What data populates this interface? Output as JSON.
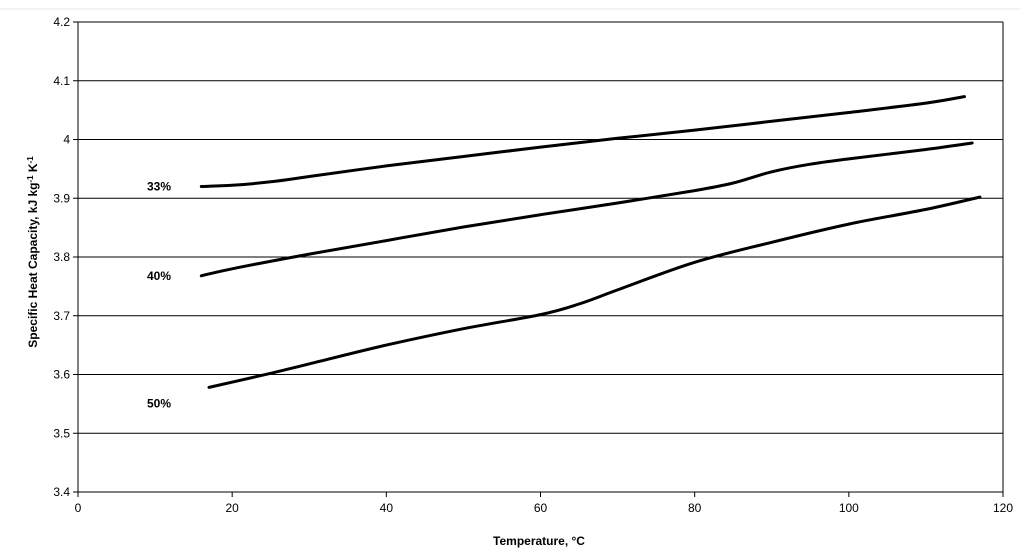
{
  "chart_data": {
    "type": "line",
    "title": "",
    "xlabel": "Temperature, °C",
    "ylabel_parts": [
      "Specific Heat Capacity, kJ kg",
      "-1",
      " K",
      "-1"
    ],
    "xlim": [
      0,
      120
    ],
    "ylim": [
      3.4,
      4.2
    ],
    "xticks": [
      "0",
      "20",
      "40",
      "60",
      "80",
      "100",
      "120"
    ],
    "yticks": [
      "3.4",
      "3.5",
      "3.6",
      "3.7",
      "3.8",
      "3.9",
      "4",
      "4.1",
      "4.2"
    ],
    "grid": "horizontal",
    "legend": "none",
    "series": [
      {
        "name": "33%",
        "x": [
          16,
          20,
          25,
          30,
          40,
          50,
          60,
          70,
          80,
          90,
          100,
          110,
          115
        ],
        "y": [
          3.92,
          3.922,
          3.928,
          3.937,
          3.955,
          3.971,
          3.987,
          4.002,
          4.016,
          4.031,
          4.046,
          4.062,
          4.073
        ]
      },
      {
        "name": "40%",
        "x": [
          16,
          20,
          30,
          40,
          50,
          60,
          70,
          80,
          85,
          90,
          95,
          100,
          110,
          116
        ],
        "y": [
          3.768,
          3.78,
          3.805,
          3.828,
          3.851,
          3.872,
          3.892,
          3.913,
          3.926,
          3.945,
          3.958,
          3.967,
          3.983,
          3.994
        ]
      },
      {
        "name": "50%",
        "x": [
          17,
          25,
          30,
          40,
          50,
          60,
          65,
          70,
          80,
          90,
          100,
          110,
          117
        ],
        "y": [
          3.578,
          3.602,
          3.618,
          3.65,
          3.678,
          3.702,
          3.72,
          3.744,
          3.791,
          3.825,
          3.856,
          3.881,
          3.902
        ]
      }
    ]
  }
}
